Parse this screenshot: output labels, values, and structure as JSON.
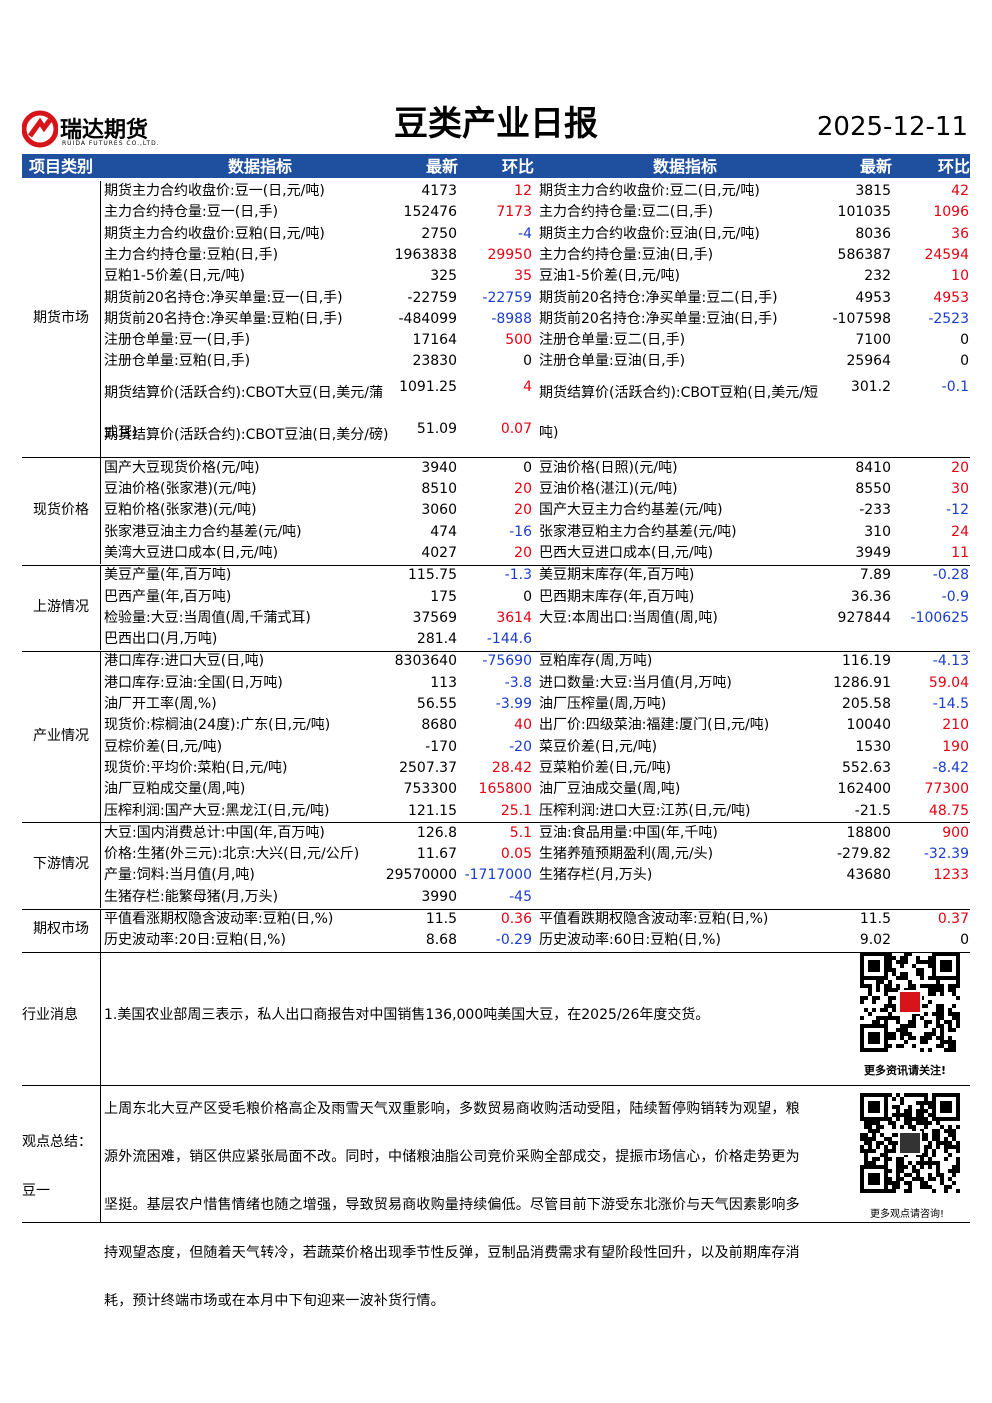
{
  "header": {
    "logo_name": "瑞达期货",
    "logo_sub": "RUIDA FUTURES CO.,LTD.",
    "title": "豆类产业日报",
    "date": "2025-12-11"
  },
  "table": {
    "columns": [
      "项目类别",
      "数据指标",
      "最新",
      "环比",
      "数据指标",
      "最新",
      "环比"
    ],
    "sections": [
      {
        "category": "期货市场",
        "rows": [
          [
            "期货主力合约收盘价:豆一(日,元/吨)",
            "4173",
            "12",
            "期货主力合约收盘价:豆二(日,元/吨)",
            "3815",
            "42"
          ],
          [
            "主力合约持仓量:豆一(日,手)",
            "152476",
            "7173",
            "主力合约持仓量:豆二(日,手)",
            "101035",
            "1096"
          ],
          [
            "期货主力合约收盘价:豆粕(日,元/吨)",
            "2750",
            "-4",
            "期货主力合约收盘价:豆油(日,元/吨)",
            "8036",
            "36"
          ],
          [
            "主力合约持仓量:豆粕(日,手)",
            "1963838",
            "29950",
            "主力合约持仓量:豆油(日,手)",
            "586387",
            "24594"
          ],
          [
            "豆粕1-5价差(日,元/吨)",
            "325",
            "35",
            "豆油1-5价差(日,元/吨)",
            "232",
            "10"
          ],
          [
            "期货前20名持仓:净买单量:豆一(日,手)",
            "-22759",
            "-22759",
            "期货前20名持仓:净买单量:豆二(日,手)",
            "4953",
            "4953"
          ],
          [
            "期货前20名持仓:净买单量:豆粕(日,手)",
            "-484099",
            "-8988",
            "期货前20名持仓:净买单量:豆油(日,手)",
            "-107598",
            "-2523"
          ],
          [
            "注册仓单量:豆一(日,手)",
            "17164",
            "500",
            "注册仓单量:豆二(日,手)",
            "7100",
            "0"
          ],
          [
            "注册仓单量:豆粕(日,手)",
            "23830",
            "0",
            "注册仓单量:豆油(日,手)",
            "25964",
            "0"
          ],
          [
            "期货结算价(活跃合约):CBOT大豆(日,美元/蒲式耳)",
            "1091.25",
            "4",
            "期货结算价(活跃合约):CBOT豆粕(日,美元/短吨)",
            "301.2",
            "-0.1"
          ],
          [
            "期货结算价(活跃合约):CBOT豆油(日,美分/磅)",
            "51.09",
            "0.07"
          ]
        ]
      },
      {
        "category": "现货价格",
        "rows": [
          [
            "国产大豆现货价格(元/吨)",
            "3940",
            "0",
            "豆油价格(日照)(元/吨)",
            "8410",
            "20"
          ],
          [
            "豆油价格(张家港)(元/吨)",
            "8510",
            "20",
            "豆油价格(湛江)(元/吨)",
            "8550",
            "30"
          ],
          [
            "豆粕价格(张家港)(元/吨)",
            "3060",
            "20",
            "国产大豆主力合约基差(元/吨)",
            "-233",
            "-12"
          ],
          [
            "张家港豆油主力合约基差(元/吨)",
            "474",
            "-16",
            "张家港豆粕主力合约基差(元/吨)",
            "310",
            "24"
          ],
          [
            "美湾大豆进口成本(日,元/吨)",
            "4027",
            "20",
            "巴西大豆进口成本(日,元/吨)",
            "3949",
            "11"
          ]
        ]
      },
      {
        "category": "上游情况",
        "rows": [
          [
            "美豆产量(年,百万吨)",
            "115.75",
            "-1.3",
            "美豆期末库存(年,百万吨)",
            "7.89",
            "-0.28"
          ],
          [
            "巴西产量(年,百万吨)",
            "175",
            "0",
            "巴西期末库存(年,百万吨)",
            "36.36",
            "-0.9"
          ],
          [
            "检验量:大豆:当周值(周,千蒲式耳)",
            "37569",
            "3614",
            "大豆:本周出口:当周值(周,吨)",
            "927844",
            "-100625"
          ],
          [
            "巴西出口(月,万吨)",
            "281.4",
            "-144.6"
          ]
        ]
      },
      {
        "category": "产业情况",
        "rows": [
          [
            "港口库存:进口大豆(日,吨)",
            "8303640",
            "-75690",
            "豆粕库存(周,万吨)",
            "116.19",
            "-4.13"
          ],
          [
            "港口库存:豆油:全国(日,万吨)",
            "113",
            "-3.8",
            "进口数量:大豆:当月值(月,万吨)",
            "1286.91",
            "59.04"
          ],
          [
            "油厂开工率(周,%)",
            "56.55",
            "-3.99",
            "油厂压榨量(周,万吨)",
            "205.58",
            "-14.5"
          ],
          [
            "现货价:棕榈油(24度):广东(日,元/吨)",
            "8680",
            "40",
            "出厂价:四级菜油:福建:厦门(日,元/吨)",
            "10040",
            "210"
          ],
          [
            "豆棕价差(日,元/吨)",
            "-170",
            "-20",
            "菜豆价差(日,元/吨)",
            "1530",
            "190"
          ],
          [
            "现货价:平均价:菜粕(日,元/吨)",
            "2507.37",
            "28.42",
            "豆菜粕价差(日,元/吨)",
            "552.63",
            "-8.42"
          ],
          [
            "油厂豆粕成交量(周,吨)",
            "753300",
            "165800",
            "油厂豆油成交量(周,吨)",
            "162400",
            "77300"
          ],
          [
            "压榨利润:国产大豆:黑龙江(日,元/吨)",
            "121.15",
            "25.1",
            "压榨利润:进口大豆:江苏(日,元/吨)",
            "-21.5",
            "48.75"
          ]
        ]
      },
      {
        "category": "下游情况",
        "rows": [
          [
            "大豆:国内消费总计:中国(年,百万吨)",
            "126.8",
            "5.1",
            "豆油:食品用量:中国(年,千吨)",
            "18800",
            "900"
          ],
          [
            "价格:生猪(外三元):北京:大兴(日,元/公斤)",
            "11.67",
            "0.05",
            "生猪养殖预期盈利(周,元/头)",
            "-279.82",
            "-32.39"
          ],
          [
            "产量:饲料:当月值(月,吨)",
            "29570000",
            "-1717000",
            "生猪存栏(月,万头)",
            "43680",
            "1233"
          ],
          [
            "生猪存栏:能繁母猪(月,万头)",
            "3990",
            "-45"
          ]
        ]
      },
      {
        "category": "期权市场",
        "rows": [
          [
            "平值看涨期权隐含波动率:豆粕(日,%)",
            "11.5",
            "0.36",
            "平值看跌期权隐含波动率:豆粕(日,%)",
            "11.5",
            "0.37"
          ],
          [
            "历史波动率:20日:豆粕(日,%)",
            "8.68",
            "-0.29",
            "历史波动率:60日:豆粕(日,%)",
            "9.02",
            "0"
          ]
        ]
      }
    ]
  },
  "news": {
    "label": "行业消息",
    "text": "1.美国农业部周三表示，私人出口商报告对中国销售136,000吨美国大豆，在2025/26年度交货。",
    "qr_caption": "更多资讯请关注!"
  },
  "summary": {
    "label": "观点总结：",
    "sublabel": "豆一",
    "text": "上周东北大豆产区受毛粮价格高企及雨雪天气双重影响，多数贸易商收购活动受阻，陆续暂停购销转为观望，粮源外流困难，销区供应紧张局面不改。同时，中储粮油脂公司竞价采购全部成交，提振市场信心，价格走势更为坚挺。基层农户惜售情绪也随之增强，导致贸易商收购量持续偏低。尽管目前下游受东北涨价与天气因素影响多持观望态度，但随着天气转冷，若蔬菜价格出现季节性反弹，豆制品消费需求有望阶段性回升，以及前期库存消耗，预计终端市场或在本月中下旬迎来一波补货行情。",
    "qr_caption": "更多观点请咨询!"
  }
}
